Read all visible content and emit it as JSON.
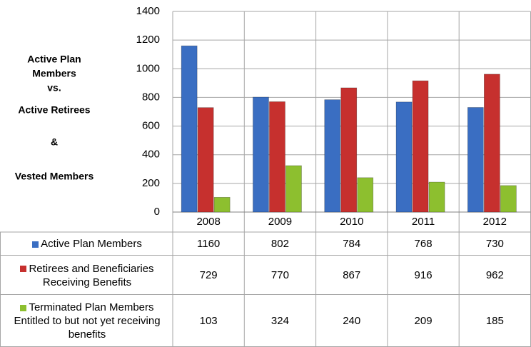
{
  "chart_data": {
    "type": "bar",
    "title_lines": [
      "Active Plan",
      "Members",
      "vs.",
      "Active Retirees",
      "&",
      "Vested Members"
    ],
    "categories": [
      "2008",
      "2009",
      "2010",
      "2011",
      "2012"
    ],
    "series": [
      {
        "name": "Active Plan Members",
        "color": "#3a6ec2",
        "values": [
          1160,
          802,
          784,
          768,
          730
        ]
      },
      {
        "name": "Retirees and Beneficiaries Receiving Benefits",
        "color": "#c6302e",
        "values": [
          729,
          770,
          867,
          916,
          962
        ]
      },
      {
        "name": "Terminated Plan Members Entitled to but not yet receiving benefits",
        "color": "#8dbf2f",
        "values": [
          103,
          324,
          240,
          209,
          185
        ]
      }
    ],
    "ylim": [
      0,
      1400
    ],
    "yticks": [
      0,
      200,
      400,
      600,
      800,
      1000,
      1200,
      1400
    ],
    "grid": true
  }
}
